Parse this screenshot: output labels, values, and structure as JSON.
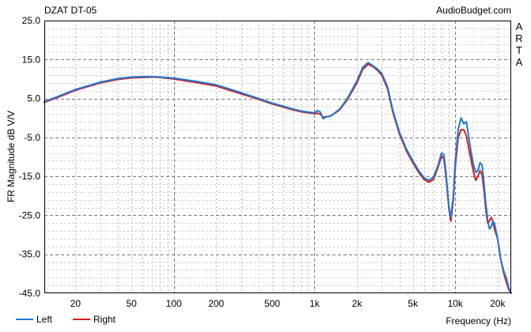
{
  "chart_data": {
    "type": "line",
    "title": "DZAT DT-05",
    "watermark": "AudioBudget.com",
    "side_label": "ARTA",
    "xlabel": "Frequency (Hz)",
    "ylabel": "FR Magnitude dB V/V",
    "x_scale": "log",
    "xlim": [
      12,
      25000
    ],
    "ylim": [
      -45,
      25
    ],
    "y_ticks": [
      "25.0",
      "15.0",
      "5.0",
      "-5.0",
      "-15.0",
      "-25.0",
      "-35.0",
      "-45.0"
    ],
    "x_ticks": [
      {
        "value": 20,
        "label": "20"
      },
      {
        "value": 50,
        "label": "50"
      },
      {
        "value": 100,
        "label": "100"
      },
      {
        "value": 200,
        "label": "200"
      },
      {
        "value": 500,
        "label": "500"
      },
      {
        "value": 1000,
        "label": "1k"
      },
      {
        "value": 2000,
        "label": "2k"
      },
      {
        "value": 5000,
        "label": "5k"
      },
      {
        "value": 10000,
        "label": "10k"
      },
      {
        "value": 20000,
        "label": "20k"
      }
    ],
    "grid": true,
    "legend_position": "bottom-left",
    "series": [
      {
        "name": "Left",
        "color": "#1f77d4",
        "x": [
          12,
          15,
          20,
          30,
          40,
          50,
          60,
          70,
          80,
          100,
          150,
          200,
          300,
          400,
          500,
          600,
          700,
          800,
          900,
          1000,
          1050,
          1100,
          1150,
          1200,
          1300,
          1500,
          1700,
          2000,
          2200,
          2400,
          2600,
          2800,
          3000,
          3300,
          3600,
          4000,
          4500,
          5000,
          5500,
          6000,
          6500,
          7000,
          7500,
          8000,
          8300,
          8600,
          9000,
          9300,
          9700,
          10000,
          10500,
          11000,
          11500,
          12000,
          12500,
          13000,
          13500,
          14000,
          14500,
          15000,
          15500,
          16000,
          16500,
          17000,
          17500,
          18000,
          18500,
          19000,
          20000,
          21000,
          22000,
          23000,
          24000,
          25000
        ],
        "y": [
          4.2,
          5.5,
          7.3,
          9.2,
          10.1,
          10.5,
          10.6,
          10.6,
          10.5,
          10.2,
          9.3,
          8.5,
          6.5,
          5.0,
          3.8,
          3.0,
          2.3,
          1.8,
          1.5,
          1.3,
          1.9,
          1.5,
          -0.2,
          0.2,
          0.5,
          2.2,
          4.8,
          9.5,
          13.0,
          14.2,
          13.4,
          12.5,
          11.5,
          8.0,
          2.0,
          -3.5,
          -8.0,
          -11.0,
          -13.5,
          -15.3,
          -16.0,
          -15.2,
          -12.5,
          -9.0,
          -9.5,
          -14.0,
          -22.5,
          -25.5,
          -20.0,
          -11.0,
          -3.0,
          0.0,
          -1.5,
          -1.0,
          -5.0,
          -9.0,
          -12.0,
          -14.0,
          -13.5,
          -11.5,
          -12.0,
          -16.5,
          -22.0,
          -26.0,
          -28.5,
          -28.0,
          -26.5,
          -27.0,
          -31.0,
          -36.0,
          -39.0,
          -41.0,
          -43.5,
          -45.0
        ]
      },
      {
        "name": "Right",
        "color": "#d42020",
        "x": [
          12,
          15,
          20,
          30,
          40,
          50,
          60,
          70,
          80,
          100,
          150,
          200,
          300,
          400,
          500,
          600,
          700,
          800,
          900,
          1000,
          1050,
          1100,
          1150,
          1200,
          1300,
          1500,
          1700,
          2000,
          2200,
          2400,
          2600,
          2800,
          3000,
          3300,
          3600,
          4000,
          4500,
          5000,
          5500,
          6000,
          6500,
          7000,
          7500,
          8000,
          8300,
          8600,
          9000,
          9300,
          9700,
          10000,
          10500,
          11000,
          11500,
          12000,
          12500,
          13000,
          13500,
          14000,
          14500,
          15000,
          15500,
          16000,
          16500,
          17000,
          17500,
          18000,
          18500,
          19000,
          20000,
          21000,
          22000,
          23000,
          24000,
          25000
        ],
        "y": [
          4.0,
          5.3,
          7.1,
          9.0,
          9.9,
          10.3,
          10.4,
          10.5,
          10.4,
          10.0,
          9.0,
          8.2,
          6.2,
          4.8,
          3.6,
          2.8,
          2.1,
          1.6,
          1.3,
          1.1,
          1.2,
          1.0,
          0.2,
          0.3,
          0.5,
          2.0,
          4.5,
          9.0,
          12.5,
          13.8,
          13.2,
          12.2,
          11.0,
          7.5,
          1.5,
          -4.0,
          -8.5,
          -11.5,
          -14.0,
          -15.8,
          -16.5,
          -15.8,
          -13.0,
          -9.8,
          -10.5,
          -15.0,
          -23.0,
          -26.5,
          -21.0,
          -12.5,
          -5.0,
          -3.0,
          -3.0,
          -4.5,
          -8.0,
          -11.0,
          -14.0,
          -16.0,
          -15.0,
          -13.5,
          -14.5,
          -18.5,
          -23.5,
          -27.0,
          -26.5,
          -25.5,
          -26.5,
          -28.5,
          -31.0,
          -36.0,
          -39.5,
          -42.0,
          -44.0,
          -45.0
        ]
      }
    ]
  }
}
